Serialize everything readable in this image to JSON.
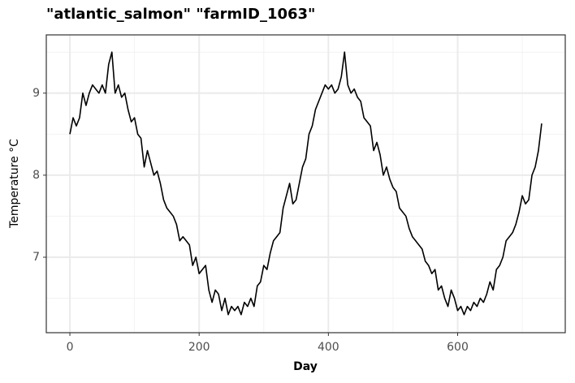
{
  "chart_data": {
    "type": "line",
    "title": "\"atlantic_salmon\" \"farmID_1063\"",
    "x_label": "Day",
    "y_label": "Temperature °C",
    "xlim": [
      -36.5,
      766.5
    ],
    "ylim": [
      6.08,
      9.71
    ],
    "xticks": [
      0,
      200,
      400,
      600
    ],
    "yticks": [
      7,
      8,
      9
    ],
    "x_minor_grid": [
      100,
      300,
      500,
      700
    ],
    "y_minor_grid": [
      6.5,
      7.5,
      8.5,
      9.5
    ],
    "grid": true,
    "series": [
      {
        "color": "#000000",
        "x": [
          0,
          5,
          10,
          15,
          20,
          25,
          30,
          35,
          40,
          45,
          50,
          55,
          60,
          65,
          70,
          75,
          80,
          85,
          90,
          95,
          100,
          105,
          110,
          115,
          120,
          125,
          130,
          135,
          140,
          145,
          150,
          155,
          160,
          165,
          170,
          175,
          180,
          185,
          190,
          195,
          200,
          205,
          210,
          215,
          220,
          225,
          230,
          235,
          240,
          245,
          250,
          255,
          260,
          265,
          270,
          275,
          280,
          285,
          290,
          295,
          300,
          305,
          310,
          315,
          320,
          325,
          330,
          335,
          340,
          345,
          350,
          355,
          360,
          365,
          370,
          375,
          380,
          385,
          390,
          395,
          400,
          405,
          410,
          415,
          420,
          425,
          430,
          435,
          440,
          445,
          450,
          455,
          460,
          465,
          470,
          475,
          480,
          485,
          490,
          495,
          500,
          505,
          510,
          515,
          520,
          525,
          530,
          535,
          540,
          545,
          550,
          555,
          560,
          565,
          570,
          575,
          580,
          585,
          590,
          595,
          600,
          605,
          610,
          615,
          620,
          625,
          630,
          635,
          640,
          645,
          650,
          655,
          660,
          665,
          670,
          675,
          680,
          685,
          690,
          695,
          700,
          705,
          710,
          715,
          720,
          725,
          730
        ],
        "values": [
          8.5,
          8.7,
          8.6,
          8.7,
          9.0,
          8.85,
          9.0,
          9.1,
          9.05,
          9.0,
          9.1,
          9.0,
          9.35,
          9.5,
          9.0,
          9.1,
          8.95,
          9.0,
          8.8,
          8.65,
          8.7,
          8.5,
          8.45,
          8.1,
          8.3,
          8.15,
          8.0,
          8.05,
          7.9,
          7.7,
          7.6,
          7.55,
          7.5,
          7.4,
          7.2,
          7.25,
          7.2,
          7.15,
          6.9,
          7.0,
          6.8,
          6.85,
          6.9,
          6.6,
          6.45,
          6.6,
          6.55,
          6.35,
          6.5,
          6.3,
          6.4,
          6.35,
          6.4,
          6.3,
          6.45,
          6.4,
          6.5,
          6.4,
          6.65,
          6.7,
          6.9,
          6.85,
          7.05,
          7.2,
          7.25,
          7.3,
          7.6,
          7.75,
          7.9,
          7.65,
          7.7,
          7.9,
          8.1,
          8.2,
          8.5,
          8.6,
          8.8,
          8.9,
          9.0,
          9.1,
          9.05,
          9.1,
          9.0,
          9.05,
          9.2,
          9.5,
          9.1,
          9.0,
          9.05,
          8.95,
          8.9,
          8.7,
          8.65,
          8.6,
          8.3,
          8.4,
          8.25,
          8.0,
          8.1,
          7.95,
          7.85,
          7.8,
          7.6,
          7.55,
          7.5,
          7.35,
          7.25,
          7.2,
          7.15,
          7.1,
          6.95,
          6.9,
          6.8,
          6.85,
          6.6,
          6.65,
          6.5,
          6.4,
          6.6,
          6.5,
          6.35,
          6.4,
          6.3,
          6.4,
          6.35,
          6.45,
          6.4,
          6.5,
          6.45,
          6.55,
          6.7,
          6.6,
          6.85,
          6.9,
          7.0,
          7.2,
          7.25,
          7.3,
          7.4,
          7.55,
          7.75,
          7.65,
          7.7,
          8.0,
          8.1,
          8.3,
          8.63
        ]
      }
    ]
  }
}
